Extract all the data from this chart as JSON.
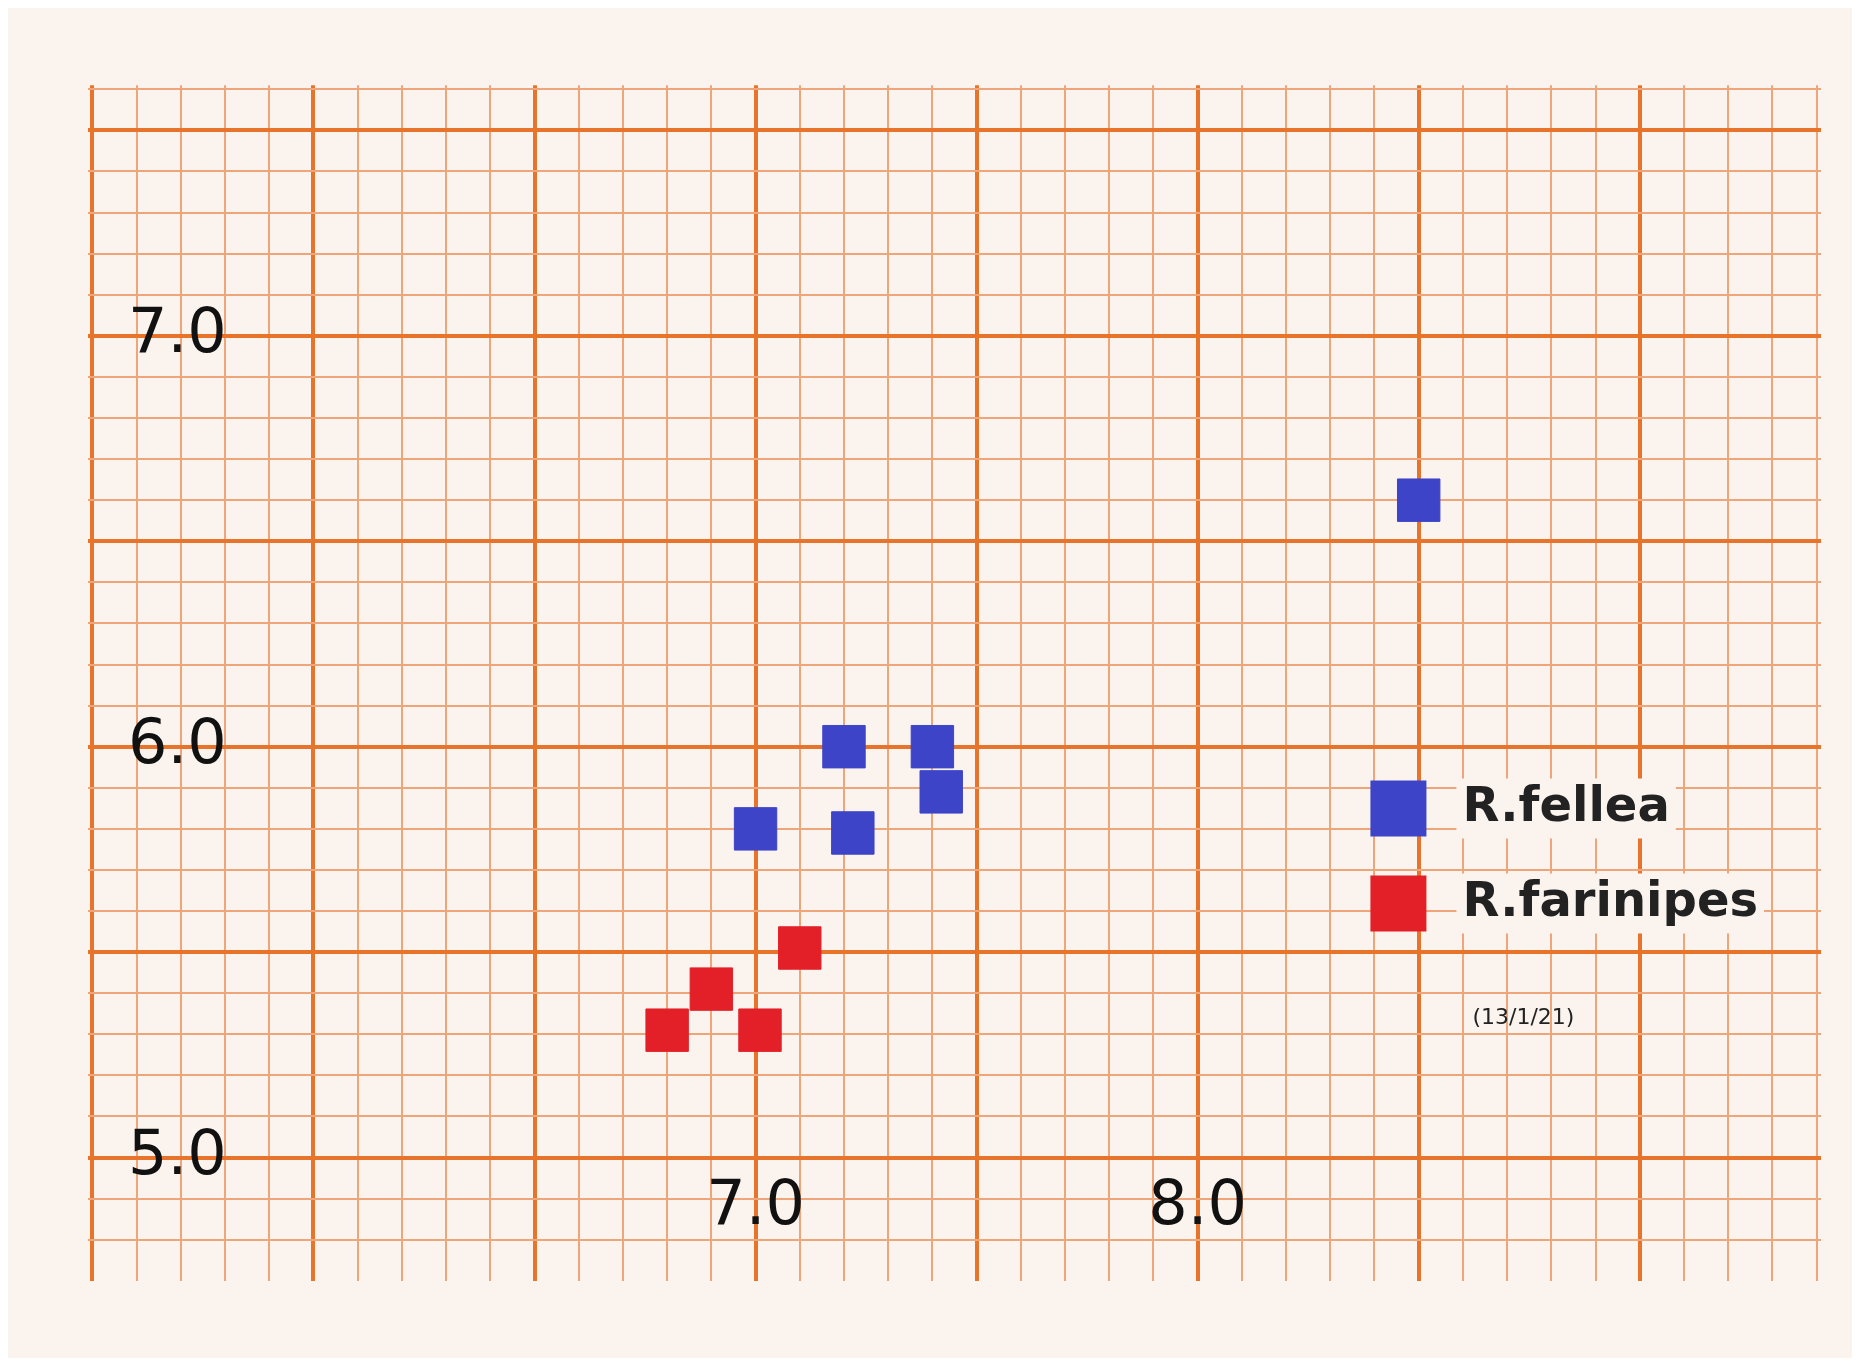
{
  "chart_data": {
    "type": "scatter",
    "grid": true,
    "marker": "square",
    "legend": "right",
    "xlim": [
      5.49,
      9.41
    ],
    "ylim": [
      4.7,
      7.61
    ],
    "xticks": [
      {
        "value": 5.5,
        "label": null
      },
      {
        "value": 5.6,
        "label": null
      },
      {
        "value": 5.7,
        "label": null
      },
      {
        "value": 5.8,
        "label": null
      },
      {
        "value": 5.9,
        "label": null
      },
      {
        "value": 6.0,
        "label": null
      },
      {
        "value": 6.1,
        "label": null
      },
      {
        "value": 6.2,
        "label": null
      },
      {
        "value": 6.3,
        "label": null
      },
      {
        "value": 6.4,
        "label": null
      },
      {
        "value": 6.5,
        "label": null
      },
      {
        "value": 6.6,
        "label": null
      },
      {
        "value": 6.7,
        "label": null
      },
      {
        "value": 6.8,
        "label": null
      },
      {
        "value": 6.9,
        "label": null
      },
      {
        "value": 7,
        "label": "7.0"
      },
      {
        "value": 7.1,
        "label": null
      },
      {
        "value": 7.2,
        "label": null
      },
      {
        "value": 7.3,
        "label": null
      },
      {
        "value": 7.4,
        "label": null
      },
      {
        "value": 7.5,
        "label": null
      },
      {
        "value": 7.6,
        "label": null
      },
      {
        "value": 7.7,
        "label": null
      },
      {
        "value": 7.8,
        "label": null
      },
      {
        "value": 7.9,
        "label": null
      },
      {
        "value": 8,
        "label": "8.0"
      },
      {
        "value": 8.1,
        "label": null
      },
      {
        "value": 8.2,
        "label": null
      },
      {
        "value": 8.3,
        "label": null
      },
      {
        "value": 8.4,
        "label": null
      },
      {
        "value": 8.5,
        "label": null
      },
      {
        "value": 8.6,
        "label": null
      },
      {
        "value": 8.7,
        "label": null
      },
      {
        "value": 8.8,
        "label": null
      },
      {
        "value": 8.9,
        "label": null
      },
      {
        "value": 9.0,
        "label": null
      },
      {
        "value": 9.1,
        "label": null
      },
      {
        "value": 9.2,
        "label": null
      },
      {
        "value": 9.3,
        "label": null
      },
      {
        "value": 9.4,
        "label": null
      }
    ],
    "yticks": [
      {
        "value": 4.8,
        "label": null
      },
      {
        "value": 4.9,
        "label": null
      },
      {
        "value": 5,
        "label": "5.0"
      },
      {
        "value": 5.1,
        "label": null
      },
      {
        "value": 5.2,
        "label": null
      },
      {
        "value": 5.3,
        "label": null
      },
      {
        "value": 5.4,
        "label": null
      },
      {
        "value": 5.5,
        "label": null
      },
      {
        "value": 5.6,
        "label": null
      },
      {
        "value": 5.7,
        "label": null
      },
      {
        "value": 5.8,
        "label": null
      },
      {
        "value": 5.9,
        "label": null
      },
      {
        "value": 6,
        "label": "6.0"
      },
      {
        "value": 6.1,
        "label": null
      },
      {
        "value": 6.2,
        "label": null
      },
      {
        "value": 6.3,
        "label": null
      },
      {
        "value": 6.4,
        "label": null
      },
      {
        "value": 6.5,
        "label": null
      },
      {
        "value": 6.6,
        "label": null
      },
      {
        "value": 6.7,
        "label": null
      },
      {
        "value": 6.8,
        "label": null
      },
      {
        "value": 6.9,
        "label": null
      },
      {
        "value": 7,
        "label": "7.0"
      },
      {
        "value": 7.1,
        "label": null
      },
      {
        "value": 7.2,
        "label": null
      },
      {
        "value": 7.3,
        "label": null
      },
      {
        "value": 7.4,
        "label": null
      },
      {
        "value": 7.5,
        "label": null
      },
      {
        "value": 7.6,
        "label": null
      }
    ],
    "annotations": [
      "(13/1/21)"
    ],
    "series": [
      {
        "name": "R.fellea",
        "color": "#3d44c8",
        "x": [
          8.5,
          7.2,
          7.4,
          7.42,
          7.0,
          7.22
        ],
        "values": [
          6.6,
          6.0,
          6.0,
          5.89,
          5.8,
          5.79
        ]
      },
      {
        "name": "R.farinipes",
        "color": "#e32028",
        "x": [
          7.1,
          6.9,
          6.8,
          7.01
        ],
        "values": [
          5.51,
          5.41,
          5.31,
          5.31
        ]
      }
    ]
  }
}
